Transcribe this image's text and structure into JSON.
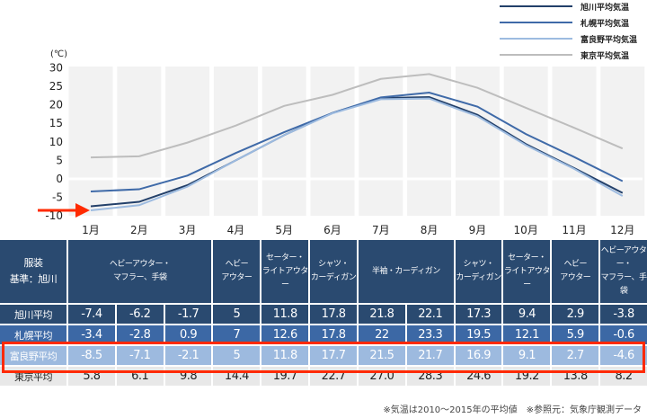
{
  "chart_data": {
    "type": "line",
    "unit_label": "(℃)",
    "categories": [
      "1月",
      "2月",
      "3月",
      "4月",
      "5月",
      "6月",
      "7月",
      "8月",
      "9月",
      "10月",
      "11月",
      "12月"
    ],
    "yticks": [
      30,
      25,
      20,
      15,
      10,
      5,
      0,
      -5,
      -10
    ],
    "ylim": [
      -10,
      30
    ],
    "legend_position": "top-right",
    "series": [
      {
        "name": "旭川平均気温",
        "color": "#23406a",
        "values": [
          -7.4,
          -6.2,
          -1.7,
          5,
          11.8,
          17.8,
          21.8,
          22.1,
          17.3,
          9.4,
          2.9,
          -3.8
        ]
      },
      {
        "name": "札幌平均気温",
        "color": "#3f6aa8",
        "values": [
          -3.4,
          -2.8,
          0.9,
          7,
          12.6,
          17.8,
          22,
          23.3,
          19.5,
          12.1,
          5.9,
          -0.6
        ]
      },
      {
        "name": "富良野平均気温",
        "color": "#9dbbe0",
        "values": [
          -8.5,
          -7.1,
          -2.1,
          5,
          11.8,
          17.7,
          21.5,
          21.7,
          16.9,
          9.1,
          2.7,
          -4.6
        ]
      },
      {
        "name": "東京平均気温",
        "color": "#bdbdbd",
        "values": [
          5.8,
          6.1,
          9.8,
          14.4,
          19.7,
          22.7,
          27.0,
          28.3,
          24.6,
          19.2,
          13.8,
          8.2
        ]
      }
    ]
  },
  "table": {
    "header_label": "服装\n基準：旭川",
    "clothing": [
      {
        "text": "ヘビーアウター・\nマフラー、手袋",
        "span": 3
      },
      {
        "text": "ヘビー\nアウター",
        "span": 1
      },
      {
        "text": "セーター・\nライトアウター",
        "span": 1
      },
      {
        "text": "シャツ・\nカーディガン",
        "span": 1
      },
      {
        "text": "半袖・カーディガン",
        "span": 2
      },
      {
        "text": "シャツ・\nカーディガン",
        "span": 1
      },
      {
        "text": "セーター・\nライトアウター",
        "span": 1
      },
      {
        "text": "ヘビー\nアウター",
        "span": 1
      },
      {
        "text": "ヘビーアウター・\nマフラー、手袋",
        "span": 1
      }
    ],
    "rows": [
      {
        "label": "旭川平均",
        "values": [
          "-7.4",
          "-6.2",
          "-1.7",
          "5",
          "11.8",
          "17.8",
          "21.8",
          "22.1",
          "17.3",
          "9.4",
          "2.9",
          "-3.8"
        ]
      },
      {
        "label": "札幌平均",
        "values": [
          "-3.4",
          "-2.8",
          "0.9",
          "7",
          "12.6",
          "17.8",
          "22",
          "23.3",
          "19.5",
          "12.1",
          "5.9",
          "-0.6"
        ]
      },
      {
        "label": "富良野平均",
        "values": [
          "-8.5",
          "-7.1",
          "-2.1",
          "5",
          "11.8",
          "17.7",
          "21.5",
          "21.7",
          "16.9",
          "9.1",
          "2.7",
          "-4.6"
        ]
      },
      {
        "label": "東京平均",
        "values": [
          "5.8",
          "6.1",
          "9.8",
          "14.4",
          "19.7",
          "22.7",
          "27.0",
          "28.3",
          "24.6",
          "19.2",
          "13.8",
          "8.2"
        ]
      }
    ]
  },
  "footnote": "※気温は2010～2015年の平均値　※参照元：気象庁観測データ",
  "highlight_color": "#ff2a00"
}
